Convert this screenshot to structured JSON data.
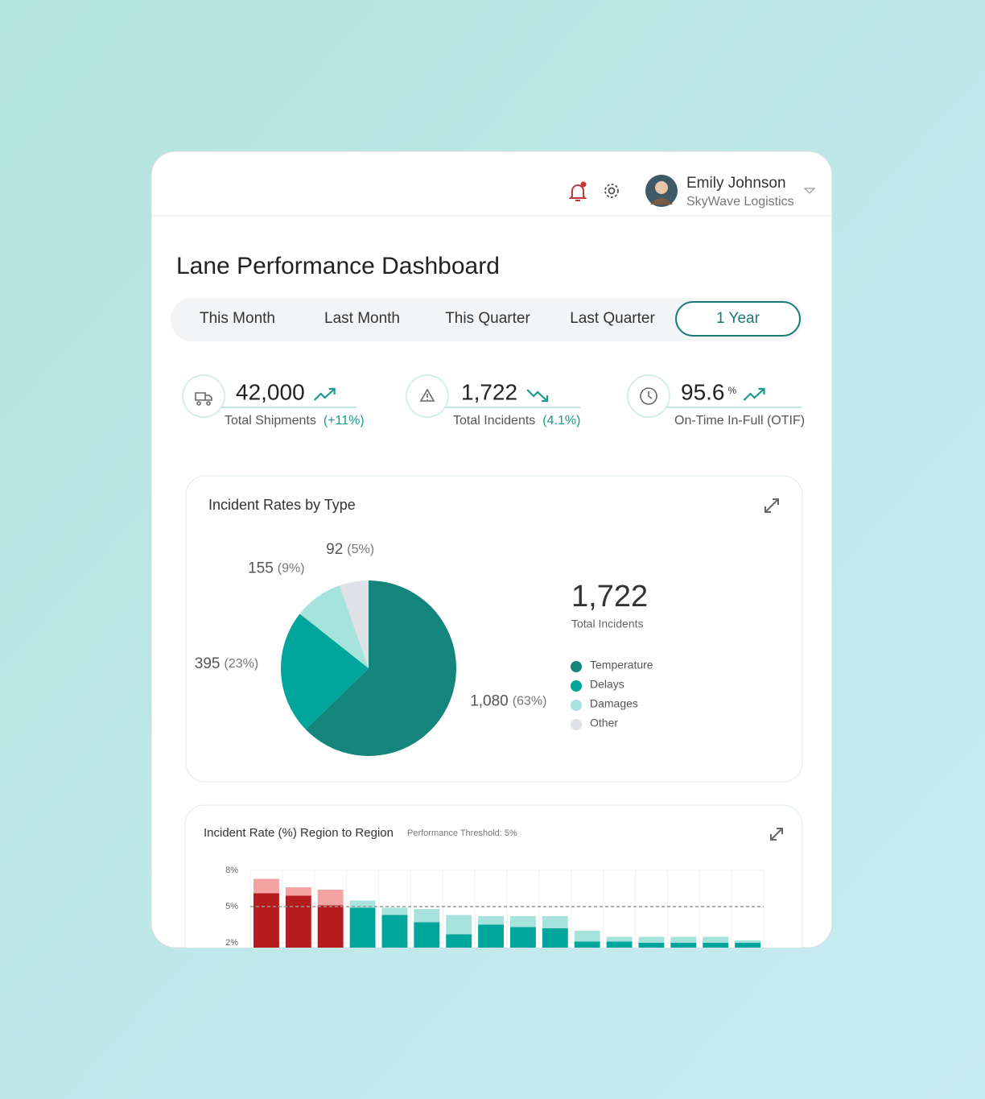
{
  "header": {
    "user_name": "Emily Johnson",
    "company": "SkyWave Logistics"
  },
  "title": "Lane Performance Dashboard",
  "tabs": {
    "items": [
      "This Month",
      "Last Month",
      "This Quarter",
      "Last Quarter",
      "1 Year"
    ],
    "active": 4
  },
  "kpis": [
    {
      "value": "42,000",
      "label": "Total Shipments",
      "change": "(+11%)",
      "trend": "up"
    },
    {
      "value": "1,722",
      "label": "Total Incidents",
      "change": "(4.1%)",
      "trend": "down"
    },
    {
      "value": "95.6",
      "unit": "%",
      "label": "On-Time In-Full (OTIF)",
      "trend": "up"
    }
  ],
  "pie_chart": {
    "type": "pie",
    "title": "Incident Rates by Type",
    "total": "1,722",
    "total_label": "Total Incidents",
    "categories": [
      "Temperature",
      "Delays",
      "Damages",
      "Other"
    ],
    "values": [
      1080,
      395,
      155,
      92
    ],
    "value_labels": [
      "1,080",
      "395",
      "155",
      "92"
    ],
    "percent_labels": [
      "(63%)",
      "(23%)",
      "(9%)",
      "(5%)"
    ],
    "colors": [
      "#14857c",
      "#00a69c",
      "#a6e3dd",
      "#dfe2e6"
    ]
  },
  "bar_chart": {
    "type": "bar",
    "title": "Incident Rate (%) Region to Region",
    "subtitle": "Performance Threshold: 5%",
    "threshold": 5,
    "ylim": [
      0,
      8
    ],
    "yticks": [
      {
        "value": 8,
        "label": "8%"
      },
      {
        "value": 5,
        "label": "5%"
      },
      {
        "value": 2,
        "label": "2%"
      }
    ],
    "grid": true,
    "series": [
      {
        "color": "#00a69c",
        "above_color": "#b71c1c",
        "values": [
          6.1,
          5.9,
          5.1,
          4.9,
          4.3,
          3.7,
          2.7,
          3.5,
          3.3,
          3.2,
          2.1,
          2.1,
          2.0,
          2.0,
          2.0,
          2.0
        ]
      },
      {
        "color": "#a6e3dd",
        "above_color": "#f4a3a3",
        "values": [
          1.2,
          0.7,
          1.3,
          0.6,
          0.6,
          1.1,
          1.6,
          0.7,
          0.9,
          1.0,
          0.9,
          0.4,
          0.5,
          0.5,
          0.5,
          0.2
        ]
      }
    ]
  }
}
